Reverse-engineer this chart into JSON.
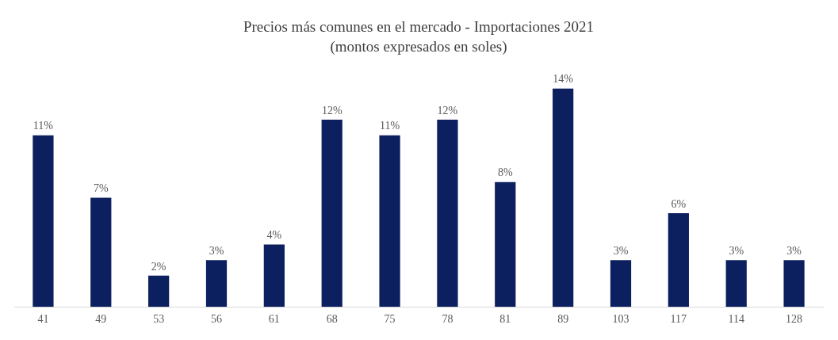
{
  "chart_data": {
    "type": "bar",
    "title": "Precios más comunes en el mercado - Importaciones 2021",
    "subtitle": "(montos expresados en soles)",
    "categories": [
      "41",
      "49",
      "53",
      "56",
      "61",
      "68",
      "75",
      "78",
      "81",
      "89",
      "103",
      "117",
      "114",
      "128"
    ],
    "values": [
      11,
      7,
      2,
      3,
      4,
      12,
      11,
      12,
      8,
      14,
      3,
      6,
      3,
      3
    ],
    "value_labels": [
      "11%",
      "7%",
      "2%",
      "3%",
      "4%",
      "12%",
      "11%",
      "12%",
      "8%",
      "14%",
      "3%",
      "6%",
      "3%",
      "3%"
    ],
    "color": "#0c1f5e",
    "grid": false,
    "legend": false
  }
}
